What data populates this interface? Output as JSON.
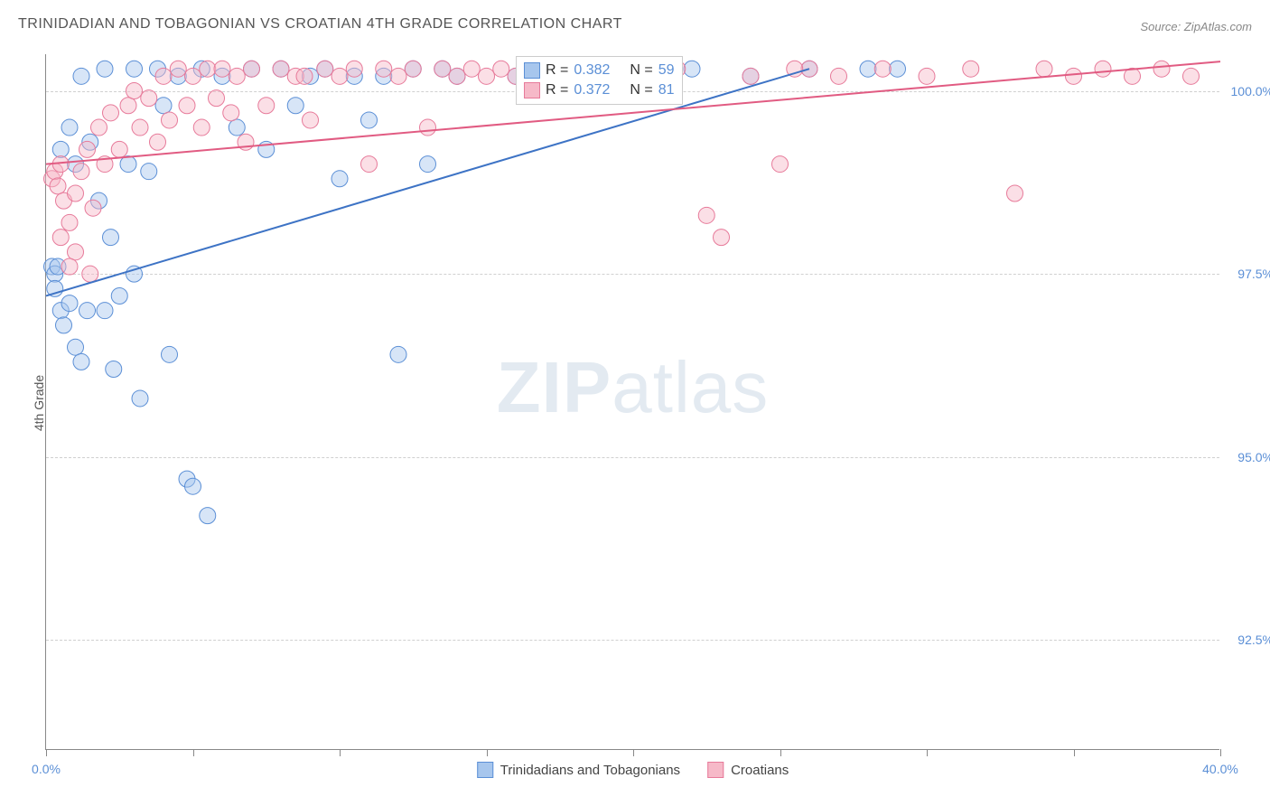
{
  "title": "TRINIDADIAN AND TOBAGONIAN VS CROATIAN 4TH GRADE CORRELATION CHART",
  "source": "Source: ZipAtlas.com",
  "watermark_primary": "ZIP",
  "watermark_secondary": "atlas",
  "y_axis_label": "4th Grade",
  "chart": {
    "type": "scatter",
    "xlim": [
      0,
      40
    ],
    "ylim": [
      91,
      100.5
    ],
    "x_ticks": [
      0,
      5,
      10,
      15,
      20,
      25,
      30,
      35,
      40
    ],
    "x_tick_labels_shown": {
      "0": "0.0%",
      "40": "40.0%"
    },
    "y_grid": [
      92.5,
      95.0,
      97.5,
      100.0
    ],
    "y_tick_labels": [
      "92.5%",
      "95.0%",
      "97.5%",
      "100.0%"
    ],
    "background_color": "#ffffff",
    "grid_color": "#d0d0d0",
    "axis_color": "#888888",
    "label_color": "#5b8fd6",
    "point_radius": 9,
    "point_opacity": 0.45,
    "line_width": 2,
    "series": [
      {
        "name": "Trinidadians and Tobagonians",
        "fill": "#a7c6ed",
        "stroke": "#5b8fd6",
        "line_color": "#3d73c5",
        "r_value": "0.382",
        "n_value": "59",
        "regression": {
          "x1": 0,
          "y1": 97.2,
          "x2": 26,
          "y2": 100.3
        },
        "points": [
          [
            0.2,
            97.6
          ],
          [
            0.3,
            97.5
          ],
          [
            0.4,
            97.6
          ],
          [
            0.3,
            97.3
          ],
          [
            0.5,
            97.0
          ],
          [
            0.6,
            96.8
          ],
          [
            0.8,
            97.1
          ],
          [
            1.0,
            96.5
          ],
          [
            1.2,
            96.3
          ],
          [
            1.4,
            97.0
          ],
          [
            0.5,
            99.2
          ],
          [
            0.8,
            99.5
          ],
          [
            1.0,
            99.0
          ],
          [
            1.2,
            100.2
          ],
          [
            1.5,
            99.3
          ],
          [
            1.8,
            98.5
          ],
          [
            2.0,
            100.3
          ],
          [
            2.2,
            98.0
          ],
          [
            2.5,
            97.2
          ],
          [
            2.8,
            99.0
          ],
          [
            3.0,
            97.5
          ],
          [
            3.2,
            95.8
          ],
          [
            3.5,
            98.9
          ],
          [
            3.8,
            100.3
          ],
          [
            4.0,
            99.8
          ],
          [
            2.0,
            97.0
          ],
          [
            2.3,
            96.2
          ],
          [
            4.2,
            96.4
          ],
          [
            4.5,
            100.2
          ],
          [
            3.0,
            100.3
          ],
          [
            4.8,
            94.7
          ],
          [
            5.0,
            94.6
          ],
          [
            5.3,
            100.3
          ],
          [
            5.5,
            94.2
          ],
          [
            6.0,
            100.2
          ],
          [
            6.5,
            99.5
          ],
          [
            7.0,
            100.3
          ],
          [
            7.5,
            99.2
          ],
          [
            8.0,
            100.3
          ],
          [
            8.5,
            99.8
          ],
          [
            9.0,
            100.2
          ],
          [
            9.5,
            100.3
          ],
          [
            10.0,
            98.8
          ],
          [
            10.5,
            100.2
          ],
          [
            11.0,
            99.6
          ],
          [
            11.5,
            100.2
          ],
          [
            12.0,
            96.4
          ],
          [
            12.5,
            100.3
          ],
          [
            13.0,
            99.0
          ],
          [
            13.5,
            100.3
          ],
          [
            14.0,
            100.2
          ],
          [
            16.0,
            100.2
          ],
          [
            18.0,
            100.3
          ],
          [
            20.0,
            100.2
          ],
          [
            22.0,
            100.3
          ],
          [
            24.0,
            100.2
          ],
          [
            26.0,
            100.3
          ],
          [
            28.0,
            100.3
          ],
          [
            29.0,
            100.3
          ]
        ]
      },
      {
        "name": "Croatians",
        "fill": "#f6b9c8",
        "stroke": "#e77a9a",
        "line_color": "#e15b82",
        "r_value": "0.372",
        "n_value": "81",
        "regression": {
          "x1": 0,
          "y1": 99.0,
          "x2": 40,
          "y2": 100.4
        },
        "points": [
          [
            0.2,
            98.8
          ],
          [
            0.3,
            98.9
          ],
          [
            0.4,
            98.7
          ],
          [
            0.5,
            99.0
          ],
          [
            0.6,
            98.5
          ],
          [
            0.8,
            98.2
          ],
          [
            1.0,
            98.6
          ],
          [
            1.2,
            98.9
          ],
          [
            1.4,
            99.2
          ],
          [
            1.6,
            98.4
          ],
          [
            1.8,
            99.5
          ],
          [
            2.0,
            99.0
          ],
          [
            2.2,
            99.7
          ],
          [
            2.5,
            99.2
          ],
          [
            2.8,
            99.8
          ],
          [
            3.0,
            100.0
          ],
          [
            3.2,
            99.5
          ],
          [
            3.5,
            99.9
          ],
          [
            3.8,
            99.3
          ],
          [
            4.0,
            100.2
          ],
          [
            1.0,
            97.8
          ],
          [
            1.5,
            97.5
          ],
          [
            0.5,
            98.0
          ],
          [
            0.8,
            97.6
          ],
          [
            4.2,
            99.6
          ],
          [
            4.5,
            100.3
          ],
          [
            4.8,
            99.8
          ],
          [
            5.0,
            100.2
          ],
          [
            5.3,
            99.5
          ],
          [
            5.5,
            100.3
          ],
          [
            5.8,
            99.9
          ],
          [
            6.0,
            100.3
          ],
          [
            6.3,
            99.7
          ],
          [
            6.5,
            100.2
          ],
          [
            7.0,
            100.3
          ],
          [
            7.5,
            99.8
          ],
          [
            8.0,
            100.3
          ],
          [
            8.5,
            100.2
          ],
          [
            9.0,
            99.6
          ],
          [
            9.5,
            100.3
          ],
          [
            10.0,
            100.2
          ],
          [
            10.5,
            100.3
          ],
          [
            11.0,
            99.0
          ],
          [
            11.5,
            100.3
          ],
          [
            12.0,
            100.2
          ],
          [
            12.5,
            100.3
          ],
          [
            13.0,
            99.5
          ],
          [
            13.5,
            100.3
          ],
          [
            14.0,
            100.2
          ],
          [
            14.5,
            100.3
          ],
          [
            15.0,
            100.2
          ],
          [
            15.5,
            100.3
          ],
          [
            16.0,
            100.2
          ],
          [
            16.5,
            100.3
          ],
          [
            17.0,
            100.2
          ],
          [
            17.5,
            100.3
          ],
          [
            18.0,
            100.3
          ],
          [
            18.5,
            100.2
          ],
          [
            19.5,
            100.3
          ],
          [
            20.5,
            100.2
          ],
          [
            21.5,
            100.3
          ],
          [
            22.5,
            98.3
          ],
          [
            23.0,
            98.0
          ],
          [
            24.0,
            100.2
          ],
          [
            25.0,
            99.0
          ],
          [
            26.0,
            100.3
          ],
          [
            27.0,
            100.2
          ],
          [
            28.5,
            100.3
          ],
          [
            30.0,
            100.2
          ],
          [
            31.5,
            100.3
          ],
          [
            33.0,
            98.6
          ],
          [
            34.0,
            100.3
          ],
          [
            35.0,
            100.2
          ],
          [
            36.0,
            100.3
          ],
          [
            37.0,
            100.2
          ],
          [
            38.0,
            100.3
          ],
          [
            39.0,
            100.2
          ],
          [
            25.5,
            100.3
          ],
          [
            19.0,
            100.2
          ],
          [
            8.8,
            100.2
          ],
          [
            6.8,
            99.3
          ]
        ]
      }
    ]
  },
  "legend_top": {
    "r_label": "R =",
    "n_label": "N ="
  },
  "legend_bottom": {
    "series1": "Trinidadians and Tobagonians",
    "series2": "Croatians"
  }
}
